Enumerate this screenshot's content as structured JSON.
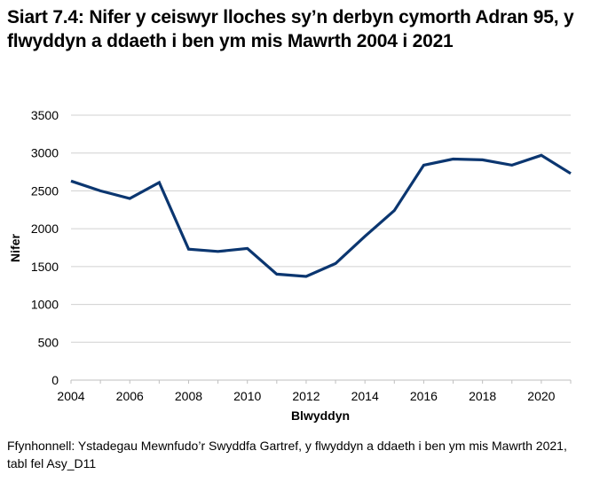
{
  "title": "Siart 7.4: Nifer y ceiswyr lloches sy’n derbyn cymorth Adran 95, y flwyddyn a ddaeth i ben ym mis Mawrth 2004 i 2021",
  "source": "Ffynhonnell: Ystadegau Mewnfudo’r Swyddfa Gartref, y flwyddyn a ddaeth i ben ym mis Mawrth 2021, tabl fel Asy_D11",
  "colors": {
    "line": "#0b3670",
    "grid": "#d0d0d0",
    "axis": "#bfbfbf"
  },
  "chart_data": {
    "type": "line",
    "title": "Siart 7.4: Nifer y ceiswyr lloches sy’n derbyn cymorth Adran 95, y flwyddyn a ddaeth i ben ym mis Mawrth 2004 i 2021",
    "xlabel": "Blwyddyn",
    "ylabel": "Nifer",
    "x": [
      2004,
      2005,
      2006,
      2007,
      2008,
      2009,
      2010,
      2011,
      2012,
      2013,
      2014,
      2015,
      2016,
      2017,
      2018,
      2019,
      2020,
      2021
    ],
    "series": [
      {
        "name": "Nifer",
        "values": [
          2630,
          2500,
          2400,
          2610,
          1730,
          1700,
          1740,
          1400,
          1370,
          1540,
          1900,
          2240,
          2840,
          2920,
          2910,
          2840,
          2970,
          2730
        ]
      }
    ],
    "xticks": [
      "2004",
      "2006",
      "2008",
      "2010",
      "2012",
      "2014",
      "2016",
      "2018",
      "2020"
    ],
    "yticks": [
      "0",
      "500",
      "1000",
      "1500",
      "2000",
      "2500",
      "3000",
      "3500"
    ],
    "ylim": [
      0,
      3500
    ],
    "xlim": [
      2004,
      2021
    ],
    "grid": true,
    "legend": "none"
  }
}
